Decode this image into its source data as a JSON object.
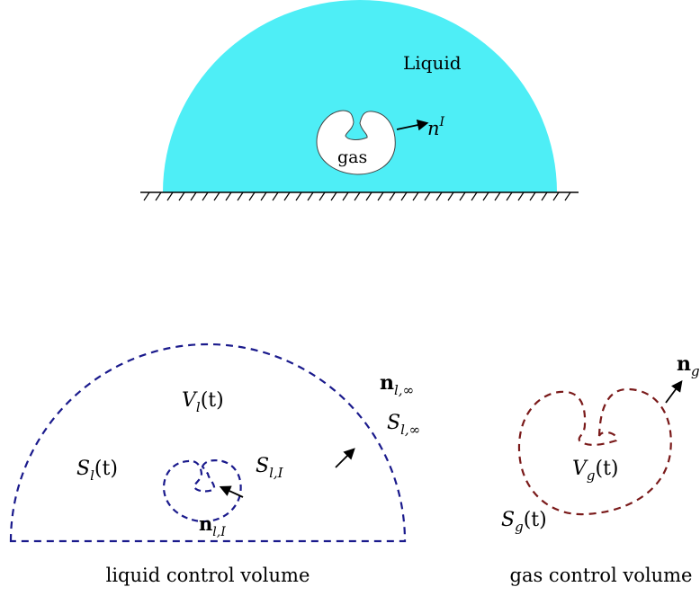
{
  "top": {
    "liquid_label": "Liquid",
    "gas_label": "gas",
    "normal_label": "n",
    "normal_sup": "I",
    "liquid_color": "#4eeef6",
    "gas_fill": "#ffffff"
  },
  "liquid_cv": {
    "caption": "liquid control volume",
    "volume_V": "V",
    "volume_sub": "l",
    "volume_arg": "(t)",
    "surface_S": "S",
    "surface_sub": "l",
    "surface_arg": "(t)",
    "interface_S": "S",
    "interface_sub": "l,I",
    "far_S": "S",
    "far_sub": "l,∞",
    "normal_far": "n",
    "normal_far_sub": "l,∞",
    "normal_int": "n",
    "normal_int_sub": "l,I",
    "dash_color": "#1a1a8c"
  },
  "gas_cv": {
    "caption": "gas control volume",
    "volume_V": "V",
    "volume_sub": "g",
    "volume_arg": "(t)",
    "surface_S": "S",
    "surface_sub": "g",
    "surface_arg": "(t)",
    "normal": "n",
    "normal_sub": "g",
    "dash_color": "#7a1a1a"
  }
}
